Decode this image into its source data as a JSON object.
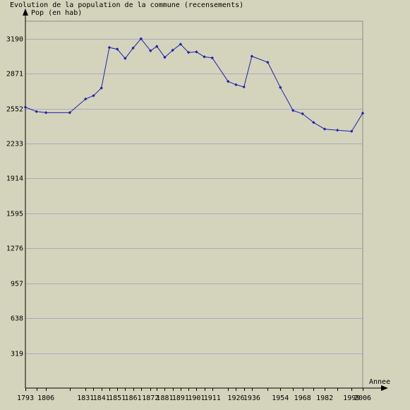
{
  "chart_data": {
    "type": "line",
    "title": "Evolution de la population de la commune (recensements)",
    "ylabel": "Pop (en hab)",
    "xlabel": "Annee",
    "ylim": [
      0,
      3350
    ],
    "y_ticks": [
      319,
      638,
      957,
      1276,
      1595,
      1914,
      2233,
      2552,
      2871,
      3190
    ],
    "x_tick_labels": [
      "1793",
      "1806",
      "1831",
      "1841",
      "1851",
      "1861",
      "1872",
      "1881",
      "1891",
      "1901",
      "1911",
      "1926",
      "1936",
      "1954",
      "1968",
      "1982",
      "1999",
      "2006"
    ],
    "grid": true,
    "colors": {
      "background": "#d4d4bc",
      "grid": "#a9a9c4",
      "series": "#2020b0",
      "axis": "#000000"
    },
    "series": [
      {
        "x": [
          "1793",
          "1800",
          "1806",
          "1821",
          "1831",
          "1836",
          "1841",
          "1846",
          "1851",
          "1856",
          "1861",
          "1866",
          "1872",
          "1876",
          "1881",
          "1886",
          "1891",
          "1896",
          "1901",
          "1906",
          "1911",
          "1921",
          "1926",
          "1931",
          "1936",
          "1946",
          "1954",
          "1962",
          "1968",
          "1975",
          "1982",
          "1990",
          "1999",
          "2006"
        ],
        "values": [
          2565,
          2525,
          2515,
          2515,
          2640,
          2670,
          2740,
          3110,
          3095,
          3010,
          3105,
          3190,
          3080,
          3120,
          3020,
          3085,
          3140,
          3065,
          3070,
          3025,
          3015,
          2800,
          2770,
          2750,
          3030,
          2975,
          2745,
          2535,
          2505,
          2425,
          2365,
          2355,
          2345,
          2510
        ]
      }
    ]
  }
}
